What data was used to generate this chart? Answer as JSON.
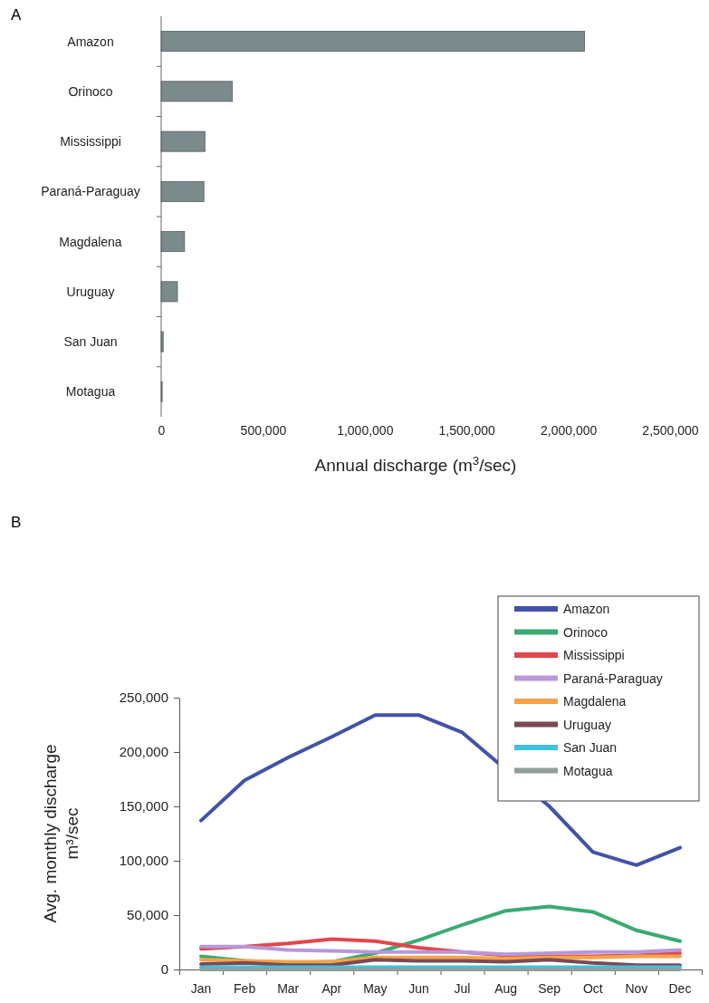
{
  "chart_data": [
    {
      "type": "bar",
      "orientation": "horizontal",
      "annotations": [
        "A"
      ],
      "xlabel": "Annual discharge (m$^{3}$/sec)",
      "categories": [
        "Amazon",
        "Orinoco",
        "Mississippi",
        "Paraná-Paraguay",
        "Magdalena",
        "Uruguay",
        "San Juan",
        "Motagua"
      ],
      "values": [
        2080000,
        350000,
        215000,
        210000,
        115000,
        80000,
        10000,
        5000
      ],
      "color": "#7b8a8b",
      "xlim": [
        0,
        2500000
      ],
      "xticks": [
        {
          "value": 0,
          "label": "0"
        },
        {
          "value": 500000,
          "label": "500,000"
        },
        {
          "value": 1000000,
          "label": "1,000,000"
        },
        {
          "value": 1500000,
          "label": "1,500,000"
        },
        {
          "value": 2000000,
          "label": "2,000,000"
        },
        {
          "value": 2500000,
          "label": "2,500,000"
        }
      ],
      "grid": false
    },
    {
      "type": "line",
      "annotations": [
        "B"
      ],
      "ylabel": "Avg. monthly discharge\nm³/sec",
      "categories": [
        "Jan",
        "Feb",
        "Mar",
        "Apr",
        "May",
        "Jun",
        "Jul",
        "Aug",
        "Sep",
        "Oct",
        "Nov",
        "Dec"
      ],
      "ylim": [
        0,
        250000
      ],
      "yticks": [
        {
          "value": 0,
          "label": "0"
        },
        {
          "value": 50000,
          "label": "50,000"
        },
        {
          "value": 100000,
          "label": "100,000"
        },
        {
          "value": 150000,
          "label": "150,000"
        },
        {
          "value": 200000,
          "label": "200,000"
        },
        {
          "value": 250000,
          "label": "250,000"
        }
      ],
      "legend": "top right",
      "marker": "none",
      "line_style": "solid",
      "grid": false,
      "series": [
        {
          "name": "Amazon",
          "color": "#4252a8",
          "values": [
            137000,
            174000,
            195000,
            214000,
            234000,
            234000,
            218000,
            null,
            150000,
            108000,
            96000,
            112000
          ]
        },
        {
          "name": "Orinoco",
          "color": "#3aaa72",
          "values": [
            12000,
            8000,
            6000,
            7000,
            15000,
            27000,
            41000,
            54000,
            58000,
            53000,
            36000,
            26000
          ]
        },
        {
          "name": "Mississippi",
          "color": "#e0474c",
          "values": [
            19000,
            21000,
            24000,
            28000,
            26000,
            20000,
            16000,
            13000,
            12000,
            12000,
            13000,
            15000
          ]
        },
        {
          "name": "Paraná-Paraguay",
          "color": "#b898d8",
          "values": [
            21000,
            21000,
            18000,
            17000,
            16000,
            16000,
            16000,
            14000,
            15000,
            16000,
            16000,
            18000
          ]
        },
        {
          "name": "Magdalena",
          "color": "#f5a34a",
          "values": [
            9000,
            8000,
            7000,
            7000,
            11000,
            11000,
            11000,
            10000,
            11000,
            11000,
            12000,
            12000
          ]
        },
        {
          "name": "Uruguay",
          "color": "#7a4a55",
          "values": [
            5000,
            6000,
            4000,
            4000,
            9000,
            8000,
            8000,
            7000,
            9000,
            6000,
            4000,
            4000
          ]
        },
        {
          "name": "San Juan",
          "color": "#40c0e0",
          "values": [
            2000,
            2000,
            2000,
            2000,
            2000,
            2000,
            2000,
            2000,
            2000,
            2000,
            2000,
            2000
          ]
        },
        {
          "name": "Motagua",
          "color": "#8fa09b",
          "values": [
            0,
            0,
            0,
            0,
            0,
            0,
            0,
            0,
            0,
            0,
            0,
            0
          ]
        }
      ]
    }
  ]
}
